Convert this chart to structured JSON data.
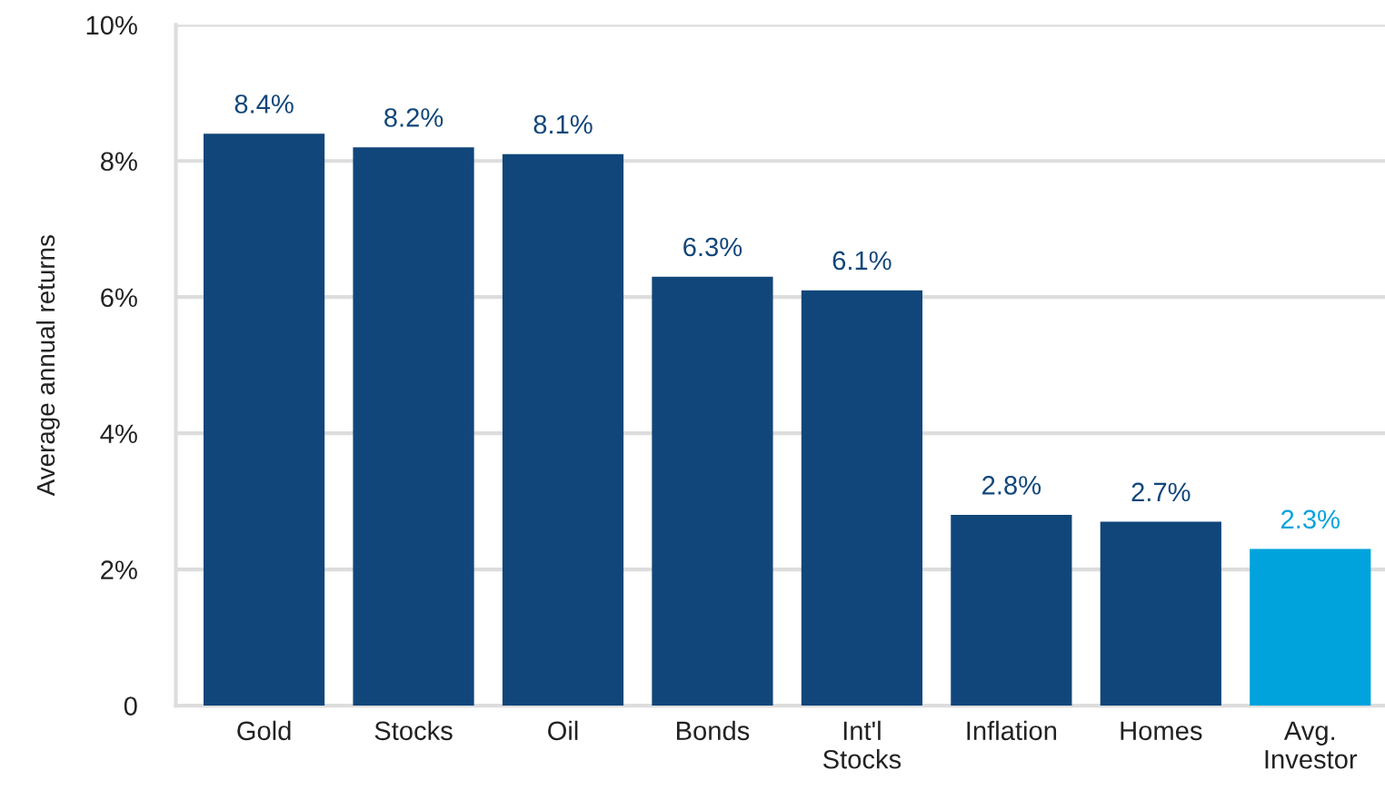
{
  "chart_data": {
    "type": "bar",
    "ylabel": "Average annual returns",
    "categories": [
      "Gold",
      "Stocks",
      "Oil",
      "Bonds",
      "Int'l\nStocks",
      "Inflation",
      "Homes",
      "Avg.\nInvestor"
    ],
    "values": [
      8.4,
      8.2,
      8.1,
      6.3,
      6.1,
      2.8,
      2.7,
      2.3
    ],
    "colors": [
      "#11467a",
      "#11467a",
      "#11467a",
      "#11467a",
      "#11467a",
      "#11467a",
      "#11467a",
      "#00a3dc"
    ],
    "value_labels": [
      "8.4%",
      "8.2%",
      "8.1%",
      "6.3%",
      "6.1%",
      "2.8%",
      "2.7%",
      "2.3%"
    ],
    "ylim": [
      0,
      10
    ],
    "yticks": [
      {
        "value": 0,
        "label": "0"
      },
      {
        "value": 2,
        "label": "2%"
      },
      {
        "value": 4,
        "label": "4%"
      },
      {
        "value": 6,
        "label": "6%"
      },
      {
        "value": 8,
        "label": "8%"
      },
      {
        "value": 10,
        "label": "10%"
      }
    ],
    "grid": "y"
  }
}
